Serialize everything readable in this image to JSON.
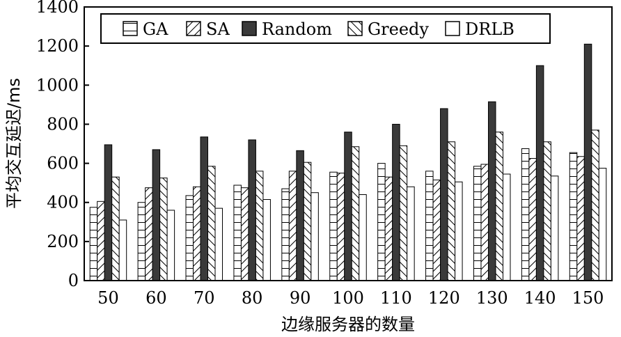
{
  "chart_data": {
    "type": "bar",
    "xlabel": "边缘服务器的数量",
    "ylabel": "平均交互延迟/ms",
    "categories": [
      "50",
      "60",
      "70",
      "80",
      "90",
      "100",
      "110",
      "120",
      "130",
      "140",
      "150"
    ],
    "ylim": [
      0,
      1400
    ],
    "yticks": [
      0,
      200,
      400,
      600,
      800,
      1000,
      1200,
      1400
    ],
    "grid": false,
    "legend_position": "top",
    "series": [
      {
        "name": "GA",
        "pattern": "horizontal-lines",
        "values": [
          375,
          400,
          435,
          488,
          470,
          555,
          600,
          560,
          585,
          675,
          655
        ]
      },
      {
        "name": "SA",
        "pattern": "diagonal-forward",
        "values": [
          405,
          475,
          480,
          475,
          560,
          550,
          530,
          515,
          595,
          625,
          635
        ]
      },
      {
        "name": "Random",
        "pattern": "solid-dark",
        "values": [
          695,
          670,
          735,
          720,
          665,
          760,
          800,
          880,
          915,
          1100,
          1210
        ]
      },
      {
        "name": "Greedy",
        "pattern": "diagonal-backward",
        "values": [
          530,
          525,
          585,
          560,
          605,
          685,
          690,
          710,
          760,
          710,
          770
        ]
      },
      {
        "name": "DRLB",
        "pattern": "empty",
        "values": [
          310,
          360,
          370,
          415,
          450,
          440,
          480,
          505,
          545,
          535,
          575
        ]
      }
    ],
    "colors": {
      "outline": "#000000",
      "solid": "#3a3a3a",
      "background": "#ffffff"
    }
  }
}
